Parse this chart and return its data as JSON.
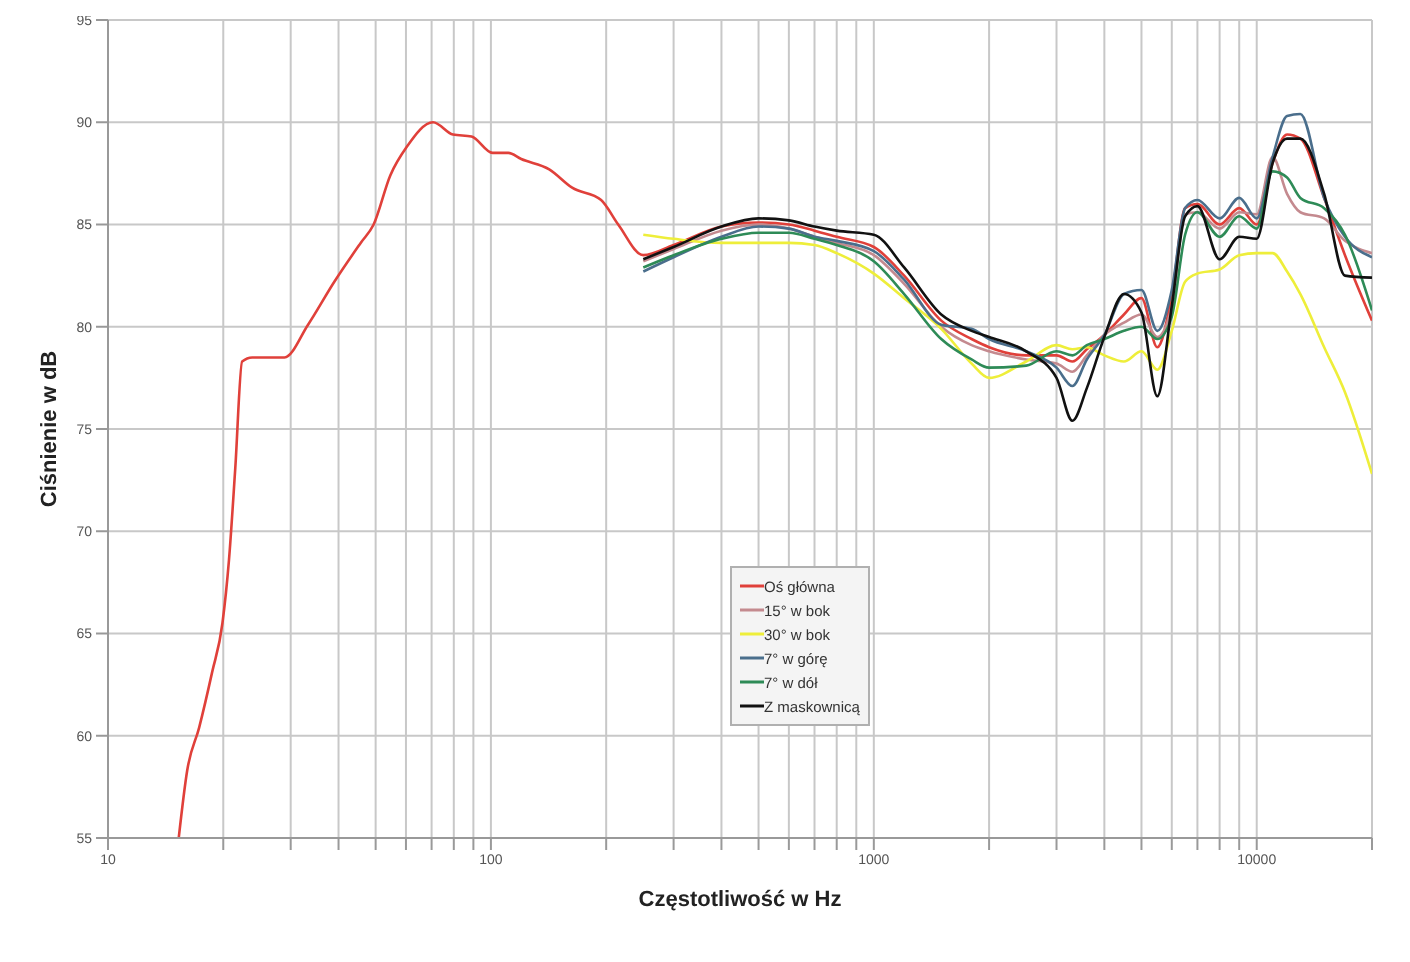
{
  "chart_data": {
    "type": "line",
    "xlabel": "Częstotliwość w Hz",
    "ylabel": "Ciśnienie w dB",
    "log": "x",
    "grid": true,
    "legend": "center",
    "xlim": [
      10,
      20000
    ],
    "ylim": [
      55,
      95
    ],
    "xticks": [
      10,
      {
        "value": 20,
        "label": null
      },
      {
        "value": 30,
        "label": null
      },
      {
        "value": 40,
        "label": null
      },
      {
        "value": 50,
        "label": null
      },
      {
        "value": 60,
        "label": null
      },
      {
        "value": 70,
        "label": null
      },
      {
        "value": 80,
        "label": null
      },
      {
        "value": 90,
        "label": null
      },
      100,
      {
        "value": 200,
        "label": null
      },
      {
        "value": 300,
        "label": null
      },
      {
        "value": 400,
        "label": null
      },
      {
        "value": 500,
        "label": null
      },
      {
        "value": 600,
        "label": null
      },
      {
        "value": 700,
        "label": null
      },
      {
        "value": 800,
        "label": null
      },
      {
        "value": 900,
        "label": null
      },
      1000,
      {
        "value": 2000,
        "label": null
      },
      {
        "value": 3000,
        "label": null
      },
      {
        "value": 4000,
        "label": null
      },
      {
        "value": 5000,
        "label": null
      },
      {
        "value": 6000,
        "label": null
      },
      {
        "value": 7000,
        "label": null
      },
      {
        "value": 8000,
        "label": null
      },
      {
        "value": 9000,
        "label": null
      },
      10000,
      {
        "value": 20000,
        "label": null
      }
    ],
    "yticks": [
      55,
      60,
      65,
      70,
      75,
      80,
      85,
      90,
      95
    ],
    "series": [
      {
        "name": "Oś główna",
        "color": "#e0403a",
        "x": [
          15.3,
          16.1,
          17.3,
          18.7,
          19.9,
          20.7,
          21.5,
          22.4,
          23.8,
          27.3,
          28.9,
          33.3,
          39,
          45.7,
          49.4,
          54.6,
          60.3,
          70.6,
          79.6,
          89,
          101,
          111,
          120,
          142,
          163,
          194,
          215,
          250,
          300,
          400,
          500,
          600,
          700,
          800,
          1000,
          1200,
          1500,
          1800,
          2000,
          2500,
          3000,
          3300,
          3600,
          4000,
          4500,
          5000,
          5500,
          6000,
          6500,
          7000,
          8000,
          9000,
          10000,
          11000,
          12000,
          13000,
          15000,
          17000,
          20000
        ],
        "values": [
          55,
          58.3,
          60.4,
          63.1,
          65.5,
          68.6,
          73.1,
          78.3,
          78.5,
          78.5,
          78.5,
          80.1,
          82.2,
          84.1,
          85,
          87.4,
          88.8,
          90,
          89.4,
          89.3,
          88.5,
          88.5,
          88.2,
          87.7,
          86.8,
          86.2,
          85,
          83.5,
          84,
          84.9,
          85.1,
          85,
          84.7,
          84.4,
          83.9,
          82.5,
          80.3,
          79.4,
          79,
          78.6,
          78.6,
          78.3,
          78.9,
          79.6,
          80.6,
          81.4,
          79,
          81.5,
          85.8,
          86,
          85,
          85.8,
          85,
          88,
          89.4,
          89.2,
          86.3,
          83.5,
          80.3
        ]
      },
      {
        "name": "15° w bok",
        "color": "#c48a8f",
        "x": [
          250,
          300,
          400,
          500,
          600,
          700,
          800,
          1000,
          1200,
          1500,
          1800,
          2000,
          2500,
          3000,
          3300,
          3600,
          4000,
          4500,
          5000,
          5500,
          6000,
          6500,
          7000,
          8000,
          9000,
          10000,
          11000,
          12000,
          13000,
          15000,
          17000,
          20000
        ],
        "values": [
          83.2,
          83.8,
          84.7,
          85,
          84.8,
          84.4,
          84.1,
          83.5,
          82.1,
          80,
          79.1,
          78.8,
          78.4,
          78.2,
          77.8,
          78.6,
          79.6,
          80.2,
          80.6,
          79.5,
          81,
          85.5,
          85.6,
          84.8,
          85.6,
          85.5,
          88.3,
          86.5,
          85.6,
          85.3,
          84.2,
          83.6
        ]
      },
      {
        "name": "30° w bok",
        "color": "#eeee3a",
        "x": [
          250,
          300,
          400,
          500,
          600,
          700,
          800,
          1000,
          1200,
          1500,
          1800,
          2000,
          2500,
          3000,
          3300,
          3600,
          4000,
          4500,
          5000,
          5500,
          6000,
          6500,
          7000,
          8000,
          9000,
          10000,
          11000,
          12000,
          13000,
          15000,
          17000,
          20000
        ],
        "values": [
          84.5,
          84.3,
          84.1,
          84.1,
          84.1,
          84,
          83.6,
          82.6,
          81.4,
          79.9,
          78.2,
          77.5,
          78.3,
          79.1,
          78.9,
          79,
          78.6,
          78.3,
          78.8,
          77.9,
          79.8,
          82.2,
          82.6,
          82.8,
          83.5,
          83.6,
          83.6,
          82.7,
          81.6,
          79,
          76.8,
          72.8
        ]
      },
      {
        "name": "7° w górę",
        "color": "#4a6e8c",
        "x": [
          250,
          300,
          400,
          500,
          600,
          700,
          800,
          1000,
          1200,
          1500,
          1800,
          2000,
          2500,
          3000,
          3300,
          3600,
          4000,
          4500,
          5000,
          5500,
          6000,
          6500,
          7000,
          8000,
          9000,
          10000,
          11000,
          12000,
          13000,
          15000,
          17000,
          20000
        ],
        "values": [
          82.7,
          83.4,
          84.4,
          84.9,
          84.8,
          84.4,
          84.2,
          83.7,
          82.3,
          80.1,
          79.9,
          79.4,
          78.8,
          78,
          77.1,
          78.4,
          79.6,
          81.6,
          81.8,
          79.8,
          81.8,
          85.8,
          86.2,
          85.3,
          86.3,
          85.3,
          88.3,
          90.3,
          90.4,
          86.3,
          84.4,
          83.4
        ]
      },
      {
        "name": "7° w dół",
        "color": "#2e8b57",
        "x": [
          250,
          300,
          400,
          500,
          600,
          700,
          800,
          1000,
          1200,
          1500,
          1800,
          2000,
          2500,
          3000,
          3300,
          3600,
          4000,
          4500,
          5000,
          5500,
          6000,
          6500,
          7000,
          8000,
          9000,
          10000,
          11000,
          12000,
          13000,
          15000,
          17000,
          20000
        ],
        "values": [
          82.9,
          83.5,
          84.3,
          84.6,
          84.6,
          84.3,
          84,
          83.2,
          81.6,
          79.4,
          78.4,
          78,
          78.1,
          78.8,
          78.6,
          79.1,
          79.4,
          79.8,
          80,
          79.4,
          80.5,
          84.5,
          85.6,
          84.4,
          85.4,
          84.8,
          87.6,
          87.3,
          86.3,
          85.8,
          84.5,
          80.8
        ]
      },
      {
        "name": "Z maskownicą",
        "color": "#111111",
        "x": [
          250,
          300,
          400,
          500,
          600,
          700,
          800,
          1000,
          1200,
          1500,
          1800,
          2000,
          2500,
          3000,
          3300,
          3600,
          4000,
          4500,
          5000,
          5500,
          6000,
          6500,
          7000,
          8000,
          9000,
          10000,
          11000,
          12000,
          13000,
          15000,
          17000,
          20000
        ],
        "values": [
          83.3,
          83.9,
          84.9,
          85.3,
          85.2,
          84.9,
          84.7,
          84.5,
          82.9,
          80.6,
          79.8,
          79.5,
          78.8,
          77.5,
          75.4,
          77,
          79.5,
          81.6,
          80.7,
          76.6,
          81,
          85.4,
          85.9,
          83.3,
          84.4,
          84.3,
          88,
          89.2,
          89.2,
          86.5,
          82.5,
          82.4
        ]
      }
    ]
  }
}
